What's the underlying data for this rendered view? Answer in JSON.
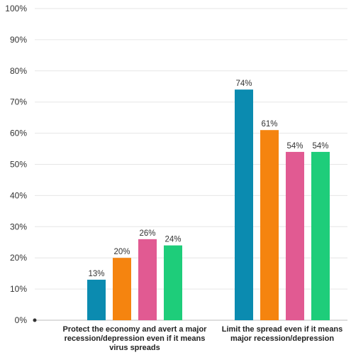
{
  "chart_data": {
    "type": "bar",
    "categories": [
      [
        "Protect the economy and avert a major",
        "recession/depression even if it means",
        "virus spreads"
      ],
      [
        "Limit the spread even if it means",
        "major recession/depression"
      ]
    ],
    "series": [
      {
        "values": [
          13,
          74
        ],
        "labels": [
          "13%",
          "74%"
        ],
        "color": "#0b8bb0"
      },
      {
        "values": [
          20,
          61
        ],
        "labels": [
          "20%",
          "61%"
        ],
        "color": "#f5840f"
      },
      {
        "values": [
          26,
          54
        ],
        "labels": [
          "26%",
          "54%"
        ],
        "color": "#e15a92"
      },
      {
        "values": [
          24,
          54
        ],
        "labels": [
          "24%",
          "54%"
        ],
        "color": "#1ecd7a"
      }
    ],
    "yticks": [
      "0%",
      "10%",
      "20%",
      "30%",
      "40%",
      "50%",
      "60%",
      "70%",
      "80%",
      "90%",
      "100%"
    ],
    "ylim": [
      0,
      100
    ],
    "grid": true,
    "legend": false
  }
}
